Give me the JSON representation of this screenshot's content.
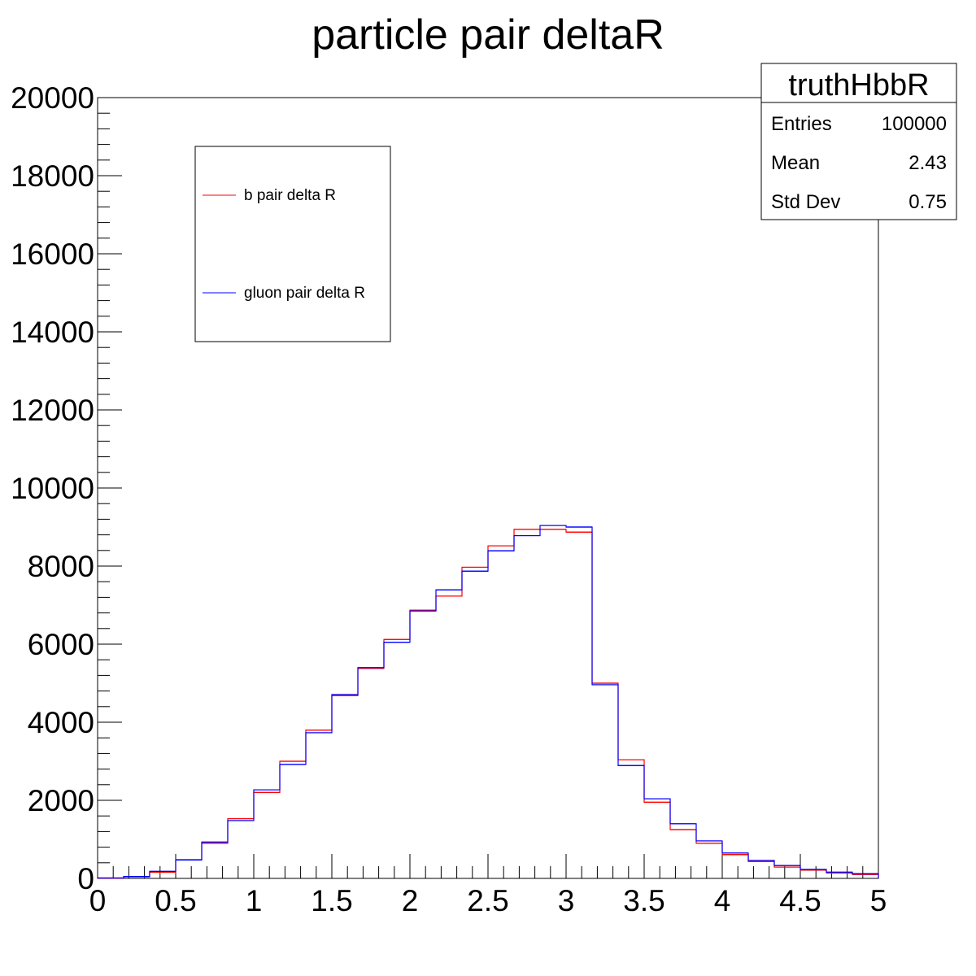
{
  "chart_data": {
    "type": "line",
    "title": "particle pair deltaR",
    "xlabel": "",
    "ylabel": "",
    "xlim": [
      0,
      5
    ],
    "ylim": [
      0,
      20000
    ],
    "x_ticks": [
      "0",
      "0.5",
      "1",
      "1.5",
      "2",
      "2.5",
      "3",
      "3.5",
      "4",
      "4.5",
      "5"
    ],
    "y_ticks": [
      "0",
      "2000",
      "4000",
      "6000",
      "8000",
      "10000",
      "12000",
      "14000",
      "16000",
      "18000",
      "20000"
    ],
    "bin_edges": [
      0,
      0.1667,
      0.3333,
      0.5,
      0.6667,
      0.8333,
      1.0,
      1.1667,
      1.3333,
      1.5,
      1.6667,
      1.8333,
      2.0,
      2.1667,
      2.3333,
      2.5,
      2.6667,
      2.8333,
      3.0,
      3.1667,
      3.3333,
      3.5,
      3.6667,
      3.8333,
      4.0,
      4.1667,
      4.3333,
      4.5,
      4.6667,
      4.8333,
      5.0
    ],
    "series": [
      {
        "name": "b pair delta R",
        "color": "#ff0000",
        "values": [
          5,
          40,
          160,
          480,
          900,
          1530,
          2200,
          3000,
          3800,
          4680,
          5380,
          6120,
          6870,
          7230,
          7970,
          8520,
          8940,
          8940,
          8870,
          5000,
          3040,
          1950,
          1250,
          900,
          610,
          430,
          290,
          210,
          140,
          100
        ]
      },
      {
        "name": "gluon pair delta R",
        "color": "#0000ff",
        "values": [
          10,
          50,
          180,
          470,
          930,
          1480,
          2270,
          2920,
          3730,
          4710,
          5400,
          6050,
          6850,
          7390,
          7870,
          8390,
          8780,
          9040,
          9000,
          4960,
          2890,
          2040,
          1400,
          960,
          650,
          460,
          330,
          230,
          160,
          120
        ]
      }
    ],
    "legend": {
      "placement": "top-left",
      "entries": [
        "b pair delta R",
        "gluon pair delta R"
      ]
    },
    "stats_box": {
      "title": "truthHbbR",
      "rows": [
        {
          "label": "Entries",
          "value": "100000"
        },
        {
          "label": "Mean",
          "value": "2.43"
        },
        {
          "label": "Std Dev",
          "value": "0.75"
        }
      ]
    },
    "grid": false
  }
}
